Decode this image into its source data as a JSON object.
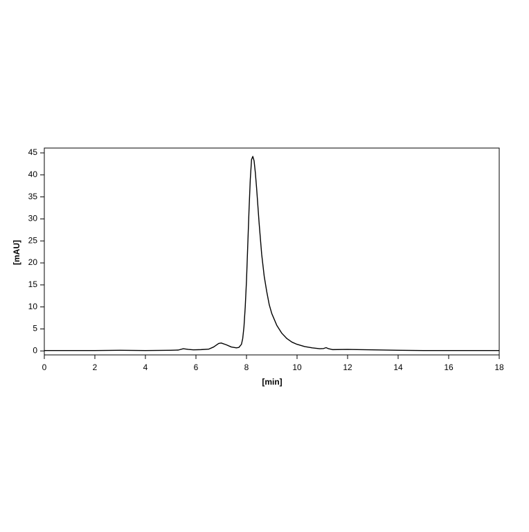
{
  "chart_data": {
    "type": "line",
    "xlabel": "[min]",
    "ylabel": "[mAU]",
    "xlim": [
      0,
      18
    ],
    "ylim": [
      -0.9,
      46.1
    ],
    "xticks": [
      0,
      2,
      4,
      6,
      8,
      10,
      12,
      14,
      16,
      18
    ],
    "yticks": [
      0,
      5,
      10,
      15,
      20,
      25,
      30,
      35,
      40,
      45
    ],
    "x": [
      0,
      1,
      2,
      3,
      4,
      5,
      5.3,
      5.5,
      5.7,
      5.9,
      6.2,
      6.5,
      6.7,
      6.9,
      7.0,
      7.2,
      7.4,
      7.6,
      7.7,
      7.8,
      7.85,
      7.9,
      7.95,
      8.0,
      8.05,
      8.1,
      8.15,
      8.2,
      8.25,
      8.3,
      8.35,
      8.4,
      8.5,
      8.6,
      8.7,
      8.8,
      8.9,
      9.0,
      9.2,
      9.4,
      9.6,
      9.8,
      10.0,
      10.3,
      10.6,
      10.9,
      11.05,
      11.15,
      11.25,
      11.4,
      12,
      13,
      14,
      15,
      16,
      17,
      18
    ],
    "series": [
      {
        "name": "signal",
        "color": "#000000",
        "values": [
          0.1,
          0.1,
          0.1,
          0.15,
          0.1,
          0.15,
          0.2,
          0.5,
          0.35,
          0.25,
          0.3,
          0.4,
          0.9,
          1.7,
          1.8,
          1.4,
          0.9,
          0.7,
          0.8,
          1.5,
          2.8,
          5.5,
          10,
          16,
          24,
          32,
          39,
          43.5,
          44.2,
          43.2,
          40.5,
          37,
          29,
          22,
          17,
          13.5,
          10.5,
          8.5,
          5.8,
          4.0,
          2.8,
          2.0,
          1.5,
          1.0,
          0.7,
          0.5,
          0.55,
          0.75,
          0.5,
          0.3,
          0.35,
          0.25,
          0.15,
          0.1,
          0.1,
          0.1,
          0.1
        ]
      }
    ]
  }
}
